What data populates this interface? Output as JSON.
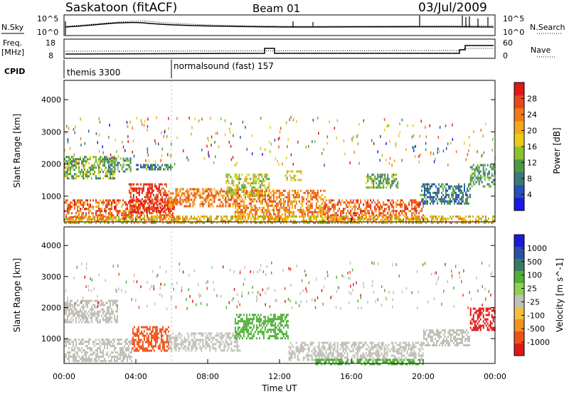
{
  "header": {
    "station": "Saskatoon (fitACF)",
    "beam": "Beam 01",
    "date": "03/Jul/2009"
  },
  "top_panels": {
    "nsky_label": "N.Sky",
    "nsky_tick_top": "10^5",
    "nsky_tick_bottom": "10^0",
    "nsearch_label": "N.Search",
    "nsearch_tick_top": "10^5",
    "nsearch_tick_bottom": "10^0",
    "freq_label_line1": "Freq.",
    "freq_label_line2": "[MHz]",
    "freq_tick_top": "18",
    "freq_tick_bottom": "8",
    "nave_label": "Nave",
    "nave_tick_top": "60",
    "nave_tick_bottom": "0",
    "cpid_label": "CPID",
    "cpid_segments": [
      {
        "name": "themis 3300",
        "start_hour": 0
      },
      {
        "name": "normalsound (fast) 157",
        "start_hour": 6
      }
    ]
  },
  "chart_data": [
    {
      "type": "heatmap",
      "panel": "power",
      "xlabel": "",
      "ylabel": "Slant Range [km]",
      "xlim": [
        0,
        24
      ],
      "ylim": [
        200,
        4600
      ],
      "ytick_labels": [
        "1000",
        "2000",
        "3000",
        "4000"
      ],
      "yticks": [
        1000,
        2000,
        3000,
        4000
      ],
      "colorbar": {
        "label": "Power [dB]",
        "ticks": [
          "4",
          "8",
          "12",
          "16",
          "20",
          "24",
          "28"
        ],
        "tick_values": [
          4,
          8,
          12,
          16,
          20,
          24,
          28
        ],
        "range": [
          0,
          30
        ],
        "colors": [
          "#1a1ae8",
          "#2a4fb8",
          "#3a7a78",
          "#4c9a44",
          "#8cc030",
          "#e8cc18",
          "#f2a818",
          "#f07818",
          "#e84818",
          "#e01818"
        ]
      },
      "echo_regions": [
        {
          "t0": 0.0,
          "t1": 6.1,
          "r0": 300,
          "r1": 900,
          "level": 24
        },
        {
          "t0": 3.6,
          "t1": 5.8,
          "r0": 500,
          "r1": 1400,
          "level": 28
        },
        {
          "t0": 5.8,
          "t1": 9.8,
          "r0": 700,
          "r1": 1250,
          "level": 22
        },
        {
          "t0": 9.0,
          "t1": 11.4,
          "r0": 1000,
          "r1": 1700,
          "level": 14
        },
        {
          "t0": 9.5,
          "t1": 14.5,
          "r0": 400,
          "r1": 1200,
          "level": 22
        },
        {
          "t0": 14.5,
          "t1": 20.0,
          "r0": 300,
          "r1": 900,
          "level": 24
        },
        {
          "t0": 0.0,
          "t1": 2.8,
          "r0": 1550,
          "r1": 2250,
          "level": 12
        },
        {
          "t0": 2.4,
          "t1": 3.7,
          "r0": 1800,
          "r1": 2200,
          "level": 10
        },
        {
          "t0": 4.0,
          "t1": 6.0,
          "r0": 1850,
          "r1": 2000,
          "level": 8
        },
        {
          "t0": 12.3,
          "t1": 13.2,
          "r0": 1500,
          "r1": 1800,
          "level": 16
        },
        {
          "t0": 16.8,
          "t1": 18.6,
          "r0": 1300,
          "r1": 1700,
          "level": 12
        },
        {
          "t0": 19.8,
          "t1": 22.6,
          "r0": 800,
          "r1": 1400,
          "level": 8
        },
        {
          "t0": 22.6,
          "t1": 24.0,
          "r0": 1300,
          "r1": 2000,
          "level": 10
        },
        {
          "t0": 0.0,
          "t1": 24.0,
          "r0": 200,
          "r1": 400,
          "level": 18
        }
      ]
    },
    {
      "type": "heatmap",
      "panel": "velocity",
      "xlabel": "Time UT",
      "ylabel": "Slant Range [km]",
      "xlim": [
        0,
        24
      ],
      "ylim": [
        200,
        4600
      ],
      "xtick_labels": [
        "00:00",
        "04:00",
        "08:00",
        "12:00",
        "16:00",
        "20:00",
        "00:00"
      ],
      "xticks": [
        0,
        4,
        8,
        12,
        16,
        20,
        24
      ],
      "ytick_labels": [
        "1000",
        "2000",
        "3000",
        "4000"
      ],
      "yticks": [
        1000,
        2000,
        3000,
        4000
      ],
      "colorbar": {
        "label": "Velocity [m s^-1]",
        "ticks": [
          "1000",
          "500",
          "100",
          "25",
          "-25",
          "-100",
          "-500",
          "-1000"
        ],
        "colors": [
          "#1a1ad8",
          "#2a4fa8",
          "#3a7a60",
          "#50b038",
          "#90d050",
          "#c0c0b8",
          "#f2c040",
          "#f29020",
          "#f05018",
          "#e01818"
        ]
      },
      "echo_regions": [
        {
          "t0": 0.0,
          "t1": 3.8,
          "r0": 300,
          "r1": 1000,
          "velocity": 0
        },
        {
          "t0": 3.8,
          "t1": 5.8,
          "r0": 600,
          "r1": 1400,
          "velocity": -300
        },
        {
          "t0": 5.8,
          "t1": 9.8,
          "r0": 600,
          "r1": 1200,
          "velocity": 0
        },
        {
          "t0": 9.5,
          "t1": 12.5,
          "r0": 1000,
          "r1": 1800,
          "velocity": 150
        },
        {
          "t0": 12.5,
          "t1": 20.0,
          "r0": 300,
          "r1": 900,
          "velocity": 0
        },
        {
          "t0": 0.0,
          "t1": 3.0,
          "r0": 1550,
          "r1": 2250,
          "velocity": 0
        },
        {
          "t0": 20.0,
          "t1": 22.6,
          "r0": 800,
          "r1": 1300,
          "velocity": 10
        },
        {
          "t0": 22.6,
          "t1": 24.0,
          "r0": 1300,
          "r1": 2000,
          "velocity": -700
        },
        {
          "t0": 14.0,
          "t1": 20.0,
          "r0": 200,
          "r1": 350,
          "velocity": 120
        }
      ]
    }
  ]
}
